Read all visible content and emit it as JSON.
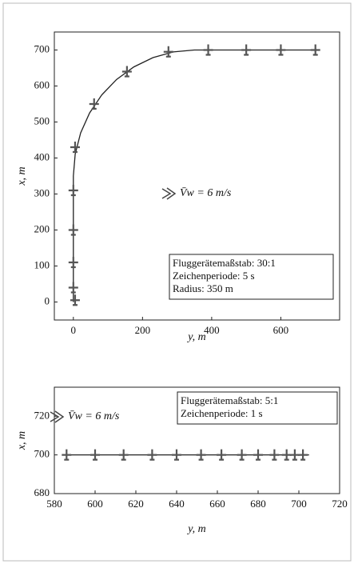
{
  "chart_data": [
    {
      "type": "line",
      "xlabel": "y, m",
      "ylabel": "x, m",
      "xlim": [
        -55,
        770
      ],
      "ylim": [
        -50,
        750
      ],
      "xticks": [
        0,
        200,
        400,
        600
      ],
      "yticks": [
        0,
        100,
        200,
        300,
        400,
        500,
        600,
        700
      ],
      "annotation": "V̄w = 6 m/s",
      "box_text": [
        "Fluggerätemaßstab: 30:1",
        "Zeichenperiode: 5 s",
        "Radius: 350 m"
      ],
      "series": [
        {
          "color": "#222222",
          "x": [
            0,
            0,
            5.3,
            21.1,
            46.9,
            81.9,
            125,
            175,
            230.3,
            289.2,
            350,
            700
          ],
          "values": [
            0,
            350,
            410.8,
            469.7,
            525,
            575,
            618.1,
            653.1,
            678.9,
            694.7,
            700,
            700
          ]
        },
        {
          "color": "#555555",
          "marker": true,
          "x": [
            5,
            0,
            0,
            0,
            0,
            5,
            60,
            155,
            275,
            390,
            500,
            600,
            700
          ],
          "values": [
            5,
            40,
            110,
            200,
            310,
            430,
            550,
            640,
            695,
            700,
            700,
            700,
            700
          ]
        }
      ]
    },
    {
      "type": "line",
      "xlabel": "y, m",
      "ylabel": "x, m",
      "xlim": [
        580,
        720
      ],
      "ylim": [
        680,
        735
      ],
      "xticks": [
        580,
        600,
        620,
        640,
        660,
        680,
        700,
        720
      ],
      "yticks": [
        680,
        700,
        720
      ],
      "annotation": "V̄w = 6 m/s",
      "box_text": [
        "Fluggerätemaßstab: 5:1",
        "Zeichenperiode: 1 s"
      ],
      "series": [
        {
          "color": "#222222",
          "x": [
            585,
            705
          ],
          "values": [
            700,
            700
          ]
        },
        {
          "color": "#555555",
          "marker": true,
          "x": [
            586,
            600,
            614,
            628,
            640,
            652,
            662,
            672,
            680,
            688,
            694,
            698,
            702
          ],
          "values": [
            700,
            700,
            700,
            700,
            700,
            700,
            700,
            700,
            700,
            700,
            700,
            700,
            700
          ]
        }
      ]
    }
  ]
}
